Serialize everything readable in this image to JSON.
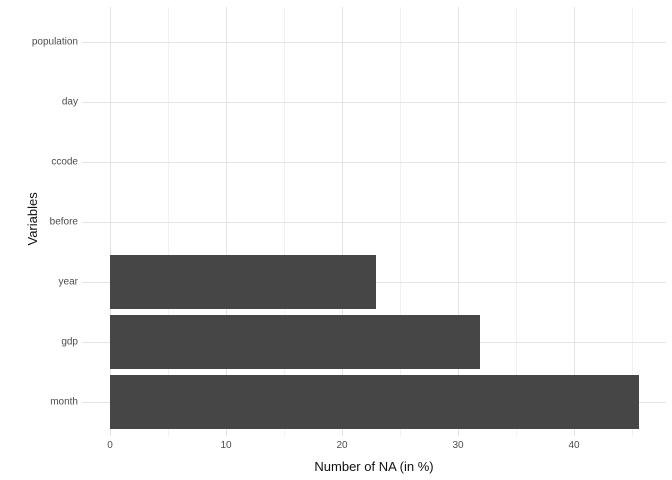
{
  "chart_data": {
    "type": "bar",
    "orientation": "horizontal",
    "title": "",
    "categories": [
      "population",
      "day",
      "ccode",
      "before",
      "year",
      "gdp",
      "month"
    ],
    "values": [
      0,
      0,
      0,
      0,
      22.9,
      31.9,
      45.6
    ],
    "xlabel": "Number of NA (in %)",
    "ylabel": "Variables",
    "xlim": [
      -2.4,
      47.9
    ],
    "x_ticks": [
      0,
      10,
      20,
      30,
      40
    ],
    "x_minor_ticks": [
      5,
      15,
      25,
      35,
      45
    ],
    "grid": true,
    "legend": "none",
    "bar_color": "#464646",
    "major_grid_color": "#e4e4e4",
    "minor_grid_color": "#f1f1f1",
    "tick_label_color": "#4d4d4d",
    "axis_title_color": "#111111",
    "background_color": "#ffffff"
  }
}
